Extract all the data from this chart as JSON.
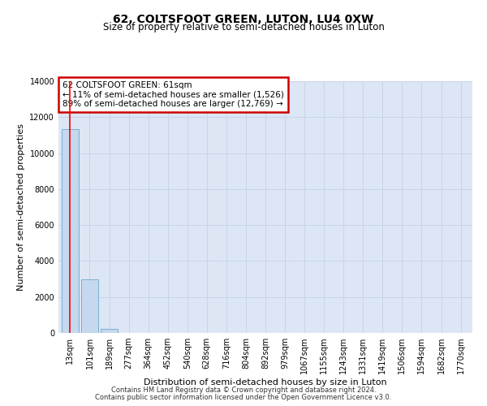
{
  "title": "62, COLTSFOOT GREEN, LUTON, LU4 0XW",
  "subtitle": "Size of property relative to semi-detached houses in Luton",
  "xlabel": "Distribution of semi-detached houses by size in Luton",
  "ylabel": "Number of semi-detached properties",
  "categories": [
    "13sqm",
    "101sqm",
    "189sqm",
    "277sqm",
    "364sqm",
    "452sqm",
    "540sqm",
    "628sqm",
    "716sqm",
    "804sqm",
    "892sqm",
    "979sqm",
    "1067sqm",
    "1155sqm",
    "1243sqm",
    "1331sqm",
    "1419sqm",
    "1506sqm",
    "1594sqm",
    "1682sqm",
    "1770sqm"
  ],
  "values": [
    11350,
    3000,
    210,
    0,
    0,
    0,
    0,
    0,
    0,
    0,
    0,
    0,
    0,
    0,
    0,
    0,
    0,
    0,
    0,
    0,
    0
  ],
  "bar_color": "#c5d8ee",
  "bar_edge_color": "#7aafd4",
  "bar_edge_width": 0.7,
  "red_line_x": 0.5,
  "annotation_line1": "62 COLTSFOOT GREEN: 61sqm",
  "annotation_line2": "← 11% of semi-detached houses are smaller (1,526)",
  "annotation_line3": "89% of semi-detached houses are larger (12,769) →",
  "annotation_box_color": "#ffffff",
  "annotation_box_edge_color": "#cc0000",
  "ylim": [
    0,
    14000
  ],
  "yticks": [
    0,
    2000,
    4000,
    6000,
    8000,
    10000,
    12000,
    14000
  ],
  "grid_color": "#c8d4e8",
  "background_color": "#dde6f4",
  "footer_line1": "Contains HM Land Registry data © Crown copyright and database right 2024.",
  "footer_line2": "Contains public sector information licensed under the Open Government Licence v3.0.",
  "title_fontsize": 10,
  "subtitle_fontsize": 8.5,
  "ylabel_fontsize": 8,
  "xlabel_fontsize": 8,
  "tick_fontsize": 7,
  "annotation_fontsize": 7.5,
  "footer_fontsize": 6
}
